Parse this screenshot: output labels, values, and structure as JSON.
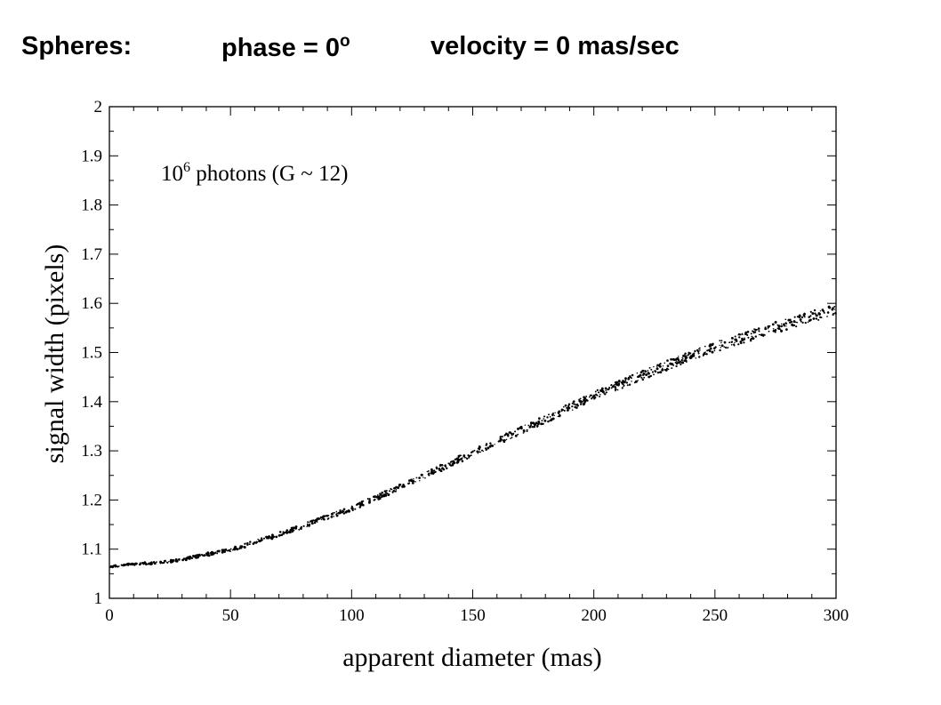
{
  "slide_title": {
    "label": "Spheres:",
    "phase_text": "phase = 0",
    "phase_sup": "o",
    "velocity_text": "velocity = 0 mas/sec"
  },
  "chart_data": {
    "type": "scatter",
    "title": "",
    "xlabel": "apparent diameter  (mas)",
    "ylabel": "signal width  (pixels)",
    "xlim": [
      0,
      300
    ],
    "ylim": [
      1,
      2
    ],
    "xticks": [
      "0",
      "50",
      "100",
      "150",
      "200",
      "250",
      "300"
    ],
    "yticks": [
      "1",
      "1.1",
      "1.2",
      "1.3",
      "1.4",
      "1.5",
      "1.6",
      "1.7",
      "1.8",
      "1.9",
      "2"
    ],
    "annotation": {
      "base": "10",
      "exponent": "6",
      "rest": " photons   (G ~ 12)"
    },
    "grid": false,
    "marker_color": "#000000",
    "series": [
      {
        "x": [
          0,
          25,
          50,
          75,
          100,
          125,
          150,
          175,
          200,
          225,
          250,
          275,
          300
        ],
        "values": [
          1.065,
          1.075,
          1.098,
          1.138,
          1.183,
          1.237,
          1.296,
          1.353,
          1.412,
          1.464,
          1.511,
          1.551,
          1.588
        ]
      }
    ]
  }
}
